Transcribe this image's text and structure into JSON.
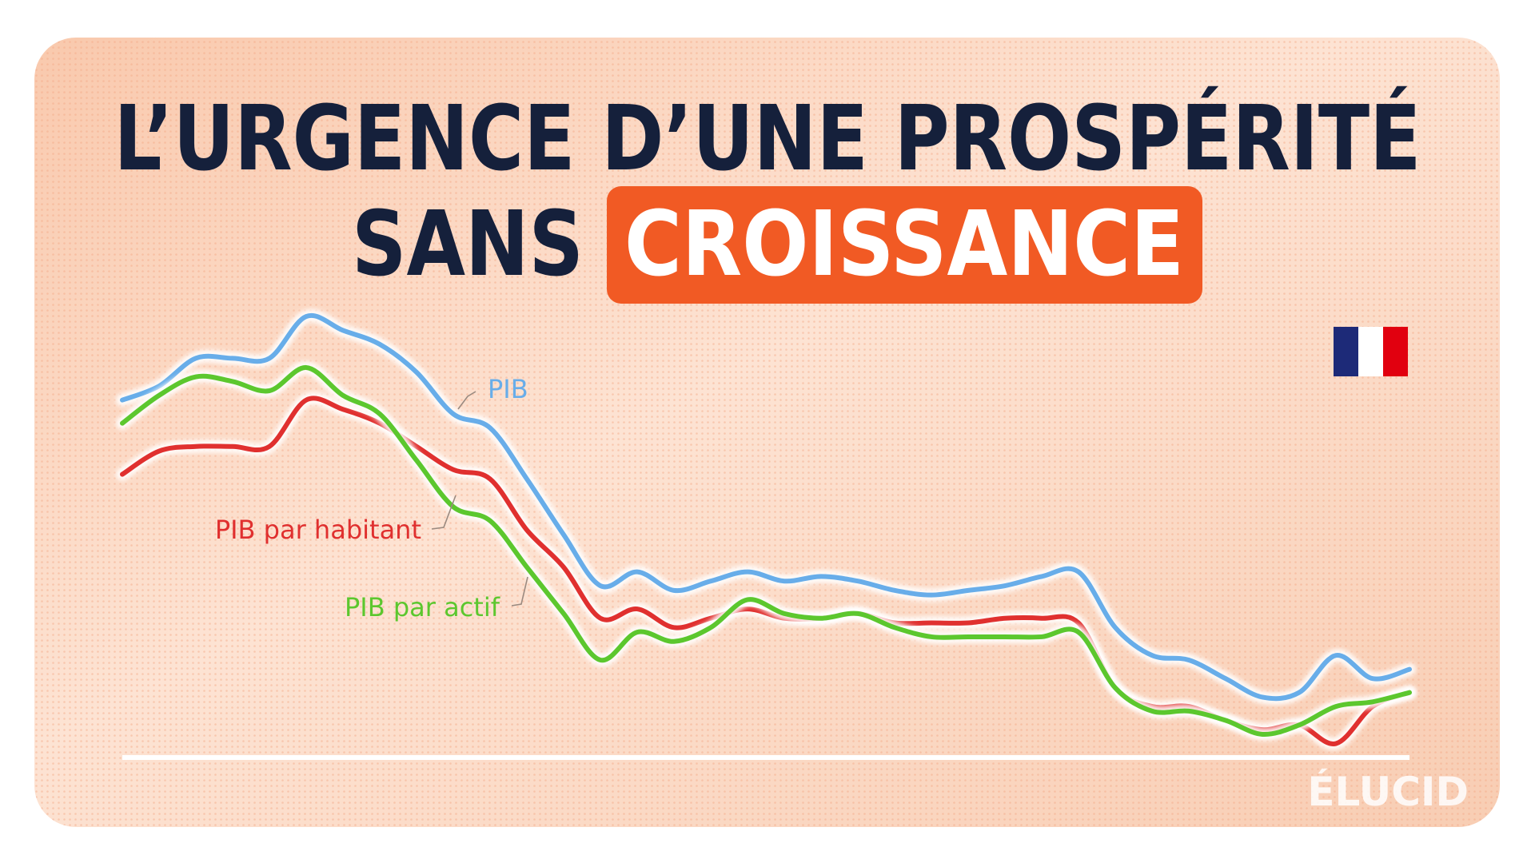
{
  "chart_data": {
    "type": "line",
    "title_lines": [
      "L’URGENCE D’UNE PROSPÉRITÉ",
      "SANS",
      "CROISSANCE"
    ],
    "ylim": [
      0,
      100
    ],
    "series": [
      {
        "name": "PIB",
        "color": "#68ade9",
        "values": [
          77,
          80,
          86,
          86,
          86,
          95,
          92,
          89,
          83,
          74,
          71,
          60,
          48,
          37,
          40,
          36,
          38,
          40,
          38,
          39,
          38,
          36,
          35,
          36,
          37,
          39,
          40,
          28,
          22,
          21,
          17,
          13,
          14,
          22,
          17,
          19
        ]
      },
      {
        "name": "PIB par habitant",
        "color": "#e0302f",
        "values": [
          61,
          66,
          67,
          67,
          67,
          77,
          75,
          72,
          67,
          62,
          60,
          49,
          41,
          30,
          32,
          28,
          30,
          32,
          30,
          30,
          31,
          29,
          29,
          29,
          30,
          30,
          29,
          15,
          11,
          11,
          8,
          6,
          7,
          3,
          11,
          14
        ]
      },
      {
        "name": "PIB par actif",
        "color": "#5cc72e",
        "values": [
          72,
          78,
          82,
          81,
          79,
          84,
          78,
          74,
          64,
          54,
          51,
          41,
          31,
          21,
          27,
          25,
          28,
          34,
          31,
          30,
          31,
          28,
          26,
          26,
          26,
          26,
          27,
          15,
          10,
          10,
          8,
          5,
          7,
          11,
          12,
          14
        ]
      }
    ]
  },
  "logo": "ÉLUCID"
}
